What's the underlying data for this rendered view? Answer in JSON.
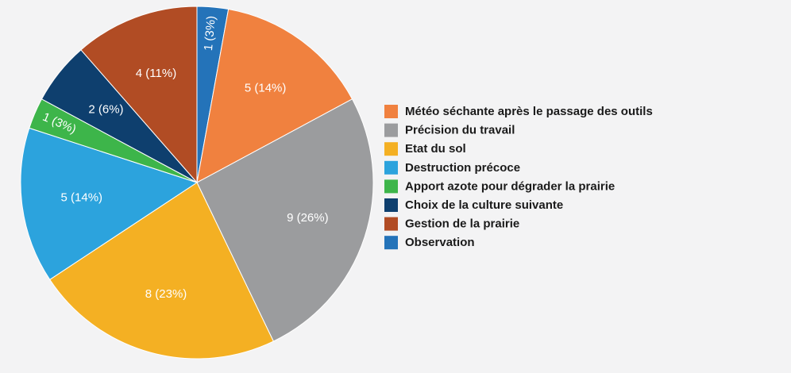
{
  "chart_data": {
    "type": "pie",
    "categories": [
      "Météo séchante après le passage des outils",
      "Précision du travail",
      "Etat du sol",
      "Destruction précoce",
      "Apport azote pour dégrader la prairie",
      "Choix de la culture suivante",
      "Gestion de la prairie",
      "Observation"
    ],
    "values": [
      5,
      9,
      8,
      5,
      1,
      2,
      4,
      1
    ],
    "value_labels": [
      "5 (14%)",
      "9 (26%)",
      "8 (23%)",
      "5 (14%)",
      "1 (3%)",
      "2 (6%)",
      "4 (11%)",
      "1 (3%)"
    ],
    "colors": [
      "#f0813f",
      "#9b9c9e",
      "#f4b023",
      "#2ca3dd",
      "#3db54a",
      "#0e3f6e",
      "#b14c24",
      "#2473b9"
    ]
  }
}
